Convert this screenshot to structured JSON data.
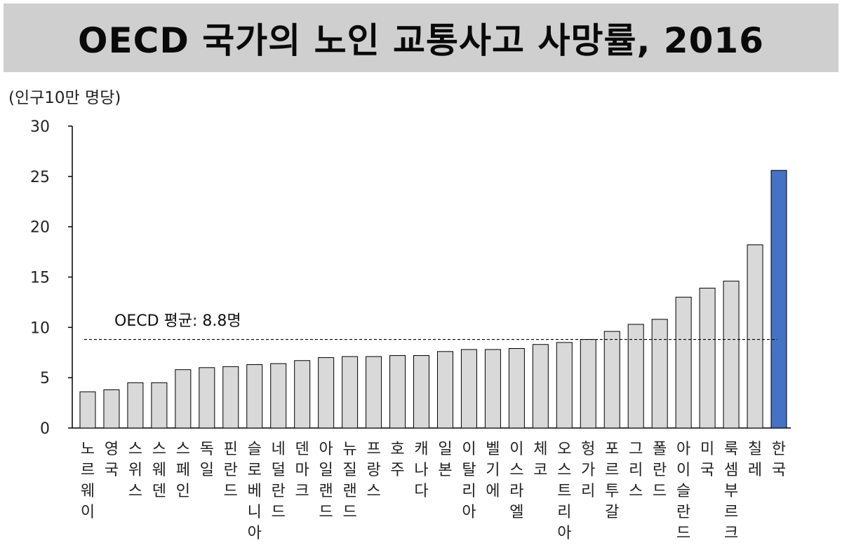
{
  "chart_data": {
    "type": "bar",
    "title": "OECD 국가의 노인 교통사고 사망률, 2016",
    "ylabel": "(인구10만 명당)",
    "xlabel": "",
    "ylim": [
      0,
      30
    ],
    "yticks": [
      0,
      5,
      10,
      15,
      20,
      25,
      30
    ],
    "grid": false,
    "categories": [
      "노르웨이",
      "영국",
      "스위스",
      "스웨덴",
      "스페인",
      "독일",
      "핀란드",
      "슬로베니아",
      "네덜란드",
      "덴마크",
      "아일랜드",
      "뉴질랜드",
      "프랑스",
      "호주",
      "캐나다",
      "일본",
      "이탈리아",
      "벨기에",
      "이스라엘",
      "체코",
      "오스트리아",
      "헝가리",
      "포르투갈",
      "그리스",
      "폴란드",
      "아이슬란드",
      "미국",
      "룩셈부르크",
      "칠레",
      "한국"
    ],
    "values": [
      3.6,
      3.8,
      4.5,
      4.5,
      5.8,
      6.0,
      6.1,
      6.3,
      6.4,
      6.7,
      7.0,
      7.1,
      7.1,
      7.2,
      7.2,
      7.6,
      7.8,
      7.8,
      7.9,
      8.3,
      8.5,
      8.8,
      9.6,
      10.3,
      10.8,
      13.0,
      13.9,
      14.6,
      18.2,
      25.6
    ],
    "highlight": {
      "category": "한국",
      "color": "#4472c4"
    },
    "bar_color": "#d9d9d9",
    "bar_edge_color": "#000000",
    "reference_line": {
      "label": "OECD 평균: 8.8명",
      "value": 8.8,
      "style": "dashed"
    }
  }
}
